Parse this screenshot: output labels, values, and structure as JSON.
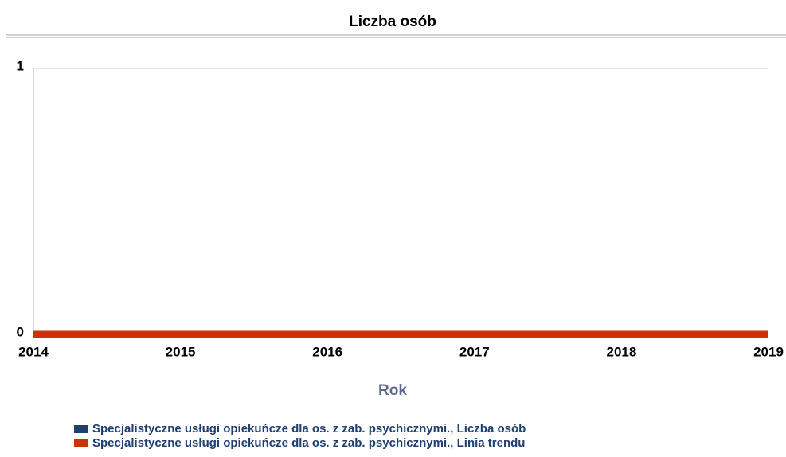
{
  "chart_data": {
    "type": "line",
    "title": "Liczba osób",
    "x_label": "Rok",
    "x": [
      2014,
      2015,
      2016,
      2017,
      2018,
      2019
    ],
    "xlim": [
      2014,
      2019
    ],
    "xticks": [
      2014,
      2015,
      2016,
      2017,
      2018,
      2019
    ],
    "ylim": [
      0,
      1
    ],
    "yticks": [
      0,
      1
    ],
    "grid": true,
    "series": [
      {
        "name": "Specjalistyczne usługi opiekuńcze dla os. z zab. psychicznymi., Liczba osób",
        "color": "#1f3f6e",
        "values": [
          0,
          0,
          0,
          0,
          0,
          0
        ]
      },
      {
        "name": "Specjalistyczne usługi opiekuńcze dla os. z zab. psychicznymi., Linia trendu",
        "color": "#cc3300",
        "values": [
          0,
          0,
          0,
          0,
          0,
          0
        ]
      }
    ]
  }
}
